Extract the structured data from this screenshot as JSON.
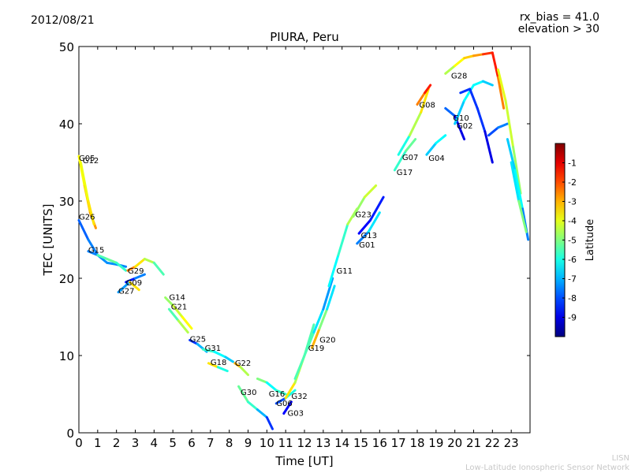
{
  "header": {
    "date": "2012/08/21",
    "bias_line": "rx_bias = 41.0",
    "elevation_line": "elevation > 30"
  },
  "footer": {
    "credit_short": "LISN",
    "credit_long": "Low-Latitude Ionospheric Sensor Network"
  },
  "chart_data": {
    "type": "scatter",
    "title": "PIURA, Peru",
    "xlabel": "Time [UT]",
    "ylabel": "TEC [UNITS]",
    "xlim": [
      0,
      24
    ],
    "ylim": [
      0,
      50
    ],
    "xticks": [
      0,
      1,
      2,
      3,
      4,
      5,
      6,
      7,
      8,
      9,
      10,
      11,
      12,
      13,
      14,
      15,
      16,
      17,
      18,
      19,
      20,
      21,
      22,
      23
    ],
    "yticks": [
      0,
      10,
      20,
      30,
      40,
      50
    ],
    "grid": false,
    "colorbar": {
      "label": "Latitude",
      "range": [
        -10,
        0
      ],
      "ticks": [
        -1,
        -2,
        -3,
        -4,
        -5,
        -6,
        -7,
        -8,
        -9
      ]
    },
    "series": [
      {
        "name": "G05",
        "label_at": [
          0.0,
          35.6
        ],
        "points": [
          [
            0.0,
            35.8,
            -4
          ],
          [
            0.3,
            32.0,
            -3.5
          ],
          [
            0.6,
            28.5,
            -3
          ],
          [
            0.9,
            26.5,
            -2.5
          ]
        ]
      },
      {
        "name": "G12",
        "label_at": [
          0.2,
          35.3
        ],
        "points": [
          [
            0.1,
            35.0,
            -4
          ],
          [
            0.5,
            30.0,
            -3.8
          ],
          [
            0.8,
            27.0,
            -3.2
          ]
        ]
      },
      {
        "name": "G26",
        "label_at": [
          0.0,
          28.0
        ],
        "points": [
          [
            0.0,
            27.5,
            -8
          ],
          [
            0.5,
            25.0,
            -7.6
          ],
          [
            1.0,
            23.0,
            -7.4
          ],
          [
            1.5,
            22.0,
            -7.3
          ],
          [
            2.0,
            21.8,
            -7.4
          ],
          [
            2.5,
            21.5,
            -7.5
          ]
        ]
      },
      {
        "name": "G15",
        "label_at": [
          0.5,
          23.7
        ],
        "points": [
          [
            0.5,
            23.5,
            -9
          ],
          [
            1.0,
            23.0,
            -6
          ],
          [
            1.5,
            22.5,
            -5
          ],
          [
            2.0,
            22.0,
            -5.5
          ],
          [
            2.5,
            21.0,
            -6
          ]
        ]
      },
      {
        "name": "G29",
        "label_at": [
          2.6,
          21.0
        ],
        "points": [
          [
            2.6,
            21.0,
            -2
          ],
          [
            3.0,
            21.5,
            -3
          ],
          [
            3.5,
            22.5,
            -4
          ],
          [
            4.0,
            22.0,
            -5
          ],
          [
            4.5,
            20.5,
            -6
          ]
        ]
      },
      {
        "name": "G09",
        "label_at": [
          2.5,
          19.5
        ],
        "points": [
          [
            2.5,
            19.5,
            -9
          ],
          [
            3.0,
            20.0,
            -8
          ],
          [
            3.5,
            20.5,
            -7
          ]
        ]
      },
      {
        "name": "G27",
        "label_at": [
          2.1,
          18.4
        ],
        "points": [
          [
            2.1,
            18.2,
            -9.5
          ],
          [
            2.7,
            19.5,
            -5
          ],
          [
            3.2,
            18.5,
            -2
          ]
        ]
      },
      {
        "name": "G14",
        "label_at": [
          4.8,
          17.6
        ],
        "points": [
          [
            4.6,
            17.5,
            -5
          ],
          [
            5.0,
            16.5,
            -4.5
          ],
          [
            5.5,
            15.0,
            -4
          ],
          [
            6.0,
            13.5,
            -3.5
          ]
        ]
      },
      {
        "name": "G21",
        "label_at": [
          4.9,
          16.4
        ],
        "points": [
          [
            4.8,
            16.0,
            -6
          ],
          [
            5.3,
            14.5,
            -5
          ],
          [
            5.8,
            13.0,
            -4
          ]
        ]
      },
      {
        "name": "G25",
        "label_at": [
          5.9,
          12.2
        ],
        "points": [
          [
            5.9,
            12.0,
            -9
          ],
          [
            6.3,
            11.5,
            -7.5
          ],
          [
            6.8,
            10.5,
            -6.5
          ]
        ]
      },
      {
        "name": "G31",
        "label_at": [
          6.7,
          11.0
        ],
        "points": [
          [
            6.6,
            10.8,
            -5.5
          ],
          [
            7.2,
            10.5,
            -6
          ],
          [
            7.8,
            9.8,
            -6.5
          ],
          [
            8.2,
            9.2,
            -7
          ]
        ]
      },
      {
        "name": "G18",
        "label_at": [
          7.0,
          9.2
        ],
        "points": [
          [
            6.9,
            9.0,
            -2
          ],
          [
            7.4,
            8.5,
            -5
          ],
          [
            7.9,
            8.0,
            -7
          ]
        ]
      },
      {
        "name": "G22",
        "label_at": [
          8.3,
          9.1
        ],
        "points": [
          [
            8.3,
            9.0,
            -2
          ],
          [
            8.6,
            8.5,
            -4
          ],
          [
            9.0,
            7.5,
            -5
          ]
        ]
      },
      {
        "name": "G30",
        "label_at": [
          8.6,
          5.3
        ],
        "points": [
          [
            8.5,
            6.0,
            -5
          ],
          [
            9.0,
            4.0,
            -5.5
          ],
          [
            9.5,
            3.0,
            -6
          ],
          [
            10.0,
            2.0,
            -8
          ],
          [
            10.3,
            0.5,
            -8.5
          ]
        ]
      },
      {
        "name": "G16",
        "label_at": [
          10.1,
          5.1
        ],
        "points": [
          [
            9.5,
            7.0,
            -4
          ],
          [
            10.0,
            6.5,
            -6
          ],
          [
            10.5,
            5.5,
            -6.5
          ],
          [
            11.0,
            5.0,
            -5
          ]
        ]
      },
      {
        "name": "G06",
        "label_at": [
          10.5,
          3.9
        ],
        "points": [
          [
            10.5,
            3.8,
            -9
          ],
          [
            11.0,
            4.5,
            -7
          ],
          [
            11.5,
            5.5,
            -5
          ]
        ]
      },
      {
        "name": "G32",
        "label_at": [
          11.3,
          4.8
        ],
        "points": [
          [
            11.0,
            4.5,
            -3
          ],
          [
            11.5,
            6.5,
            -4
          ],
          [
            12.0,
            10.0,
            -5
          ],
          [
            12.5,
            14.0,
            -6
          ]
        ]
      },
      {
        "name": "G03",
        "label_at": [
          11.1,
          2.6
        ],
        "points": [
          [
            10.9,
            2.5,
            -9.5
          ],
          [
            11.3,
            4.0,
            -8
          ]
        ]
      },
      {
        "name": "G19",
        "label_at": [
          12.2,
          11.0
        ],
        "points": [
          [
            11.5,
            7.0,
            -6
          ],
          [
            12.0,
            10.0,
            -5
          ],
          [
            12.5,
            13.0,
            -6
          ],
          [
            13.0,
            16.0,
            -7
          ],
          [
            13.5,
            20.0,
            -7.5
          ]
        ]
      },
      {
        "name": "G20",
        "label_at": [
          12.8,
          12.1
        ],
        "points": [
          [
            12.4,
            11.0,
            -2
          ],
          [
            12.8,
            13.5,
            -4
          ],
          [
            13.2,
            16.0,
            -6
          ],
          [
            13.6,
            19.0,
            -7
          ]
        ]
      },
      {
        "name": "G11",
        "label_at": [
          13.7,
          21.0
        ],
        "points": [
          [
            13.3,
            19.0,
            -6
          ],
          [
            13.8,
            23.0,
            -6.5
          ],
          [
            14.3,
            27.0,
            -5
          ],
          [
            14.8,
            29.0,
            -4
          ]
        ]
      },
      {
        "name": "G23",
        "label_at": [
          14.7,
          28.3
        ],
        "points": [
          [
            14.6,
            28.0,
            -5
          ],
          [
            15.2,
            30.5,
            -4.5
          ],
          [
            15.8,
            32.0,
            -4
          ]
        ]
      },
      {
        "name": "G13",
        "label_at": [
          15.0,
          25.6
        ],
        "points": [
          [
            14.9,
            25.8,
            -9
          ],
          [
            15.5,
            27.5,
            -8.5
          ],
          [
            16.2,
            30.5,
            -8.5
          ]
        ]
      },
      {
        "name": "G01",
        "label_at": [
          14.9,
          24.4
        ],
        "points": [
          [
            14.8,
            24.5,
            -8
          ],
          [
            15.4,
            26.0,
            -7
          ],
          [
            16.0,
            28.5,
            -6
          ]
        ]
      },
      {
        "name": "G17",
        "label_at": [
          16.9,
          33.8
        ],
        "points": [
          [
            16.8,
            34.0,
            -6
          ],
          [
            17.4,
            36.5,
            -5.5
          ],
          [
            17.9,
            38.0,
            -5
          ]
        ]
      },
      {
        "name": "G07",
        "label_at": [
          17.2,
          35.7
        ],
        "points": [
          [
            17.0,
            36.0,
            -7
          ],
          [
            17.6,
            38.5,
            -5
          ],
          [
            18.2,
            41.5,
            -4
          ],
          [
            18.6,
            44.5,
            -3
          ]
        ]
      },
      {
        "name": "G08",
        "label_at": [
          18.1,
          42.5
        ],
        "points": [
          [
            18.0,
            42.5,
            -3
          ],
          [
            18.4,
            44.0,
            -2
          ],
          [
            18.7,
            45.0,
            -1
          ]
        ]
      },
      {
        "name": "G04",
        "label_at": [
          18.6,
          35.6
        ],
        "points": [
          [
            18.5,
            36.0,
            -7
          ],
          [
            19.0,
            37.5,
            -6.5
          ],
          [
            19.5,
            38.5,
            -6
          ]
        ]
      },
      {
        "name": "G28",
        "label_at": [
          19.8,
          46.3
        ],
        "points": [
          [
            19.5,
            46.5,
            -5
          ],
          [
            20.0,
            47.5,
            -4
          ],
          [
            20.5,
            48.5,
            -3.5
          ],
          [
            21.0,
            48.8,
            -3
          ],
          [
            21.5,
            49.0,
            -2.5
          ],
          [
            22.0,
            49.2,
            -1
          ],
          [
            22.3,
            46.0,
            -2
          ],
          [
            22.6,
            42.0,
            -3
          ]
        ]
      },
      {
        "name": "G10",
        "label_at": [
          19.9,
          40.8
        ],
        "points": [
          [
            19.5,
            42.0,
            -7
          ],
          [
            20.0,
            41.0,
            -8.5
          ],
          [
            20.5,
            38.0,
            -9.5
          ]
        ]
      },
      {
        "name": "G02",
        "label_at": [
          20.1,
          39.8
        ],
        "points": [
          [
            20.0,
            40.0,
            -7
          ],
          [
            20.5,
            43.0,
            -6.5
          ],
          [
            21.0,
            45.0,
            -6
          ],
          [
            21.5,
            45.5,
            -6.5
          ],
          [
            22.0,
            45.0,
            -7
          ]
        ]
      },
      {
        "name": "",
        "label_at": null,
        "points": [
          [
            20.3,
            44.0,
            -8
          ],
          [
            20.8,
            44.5,
            -8.5
          ],
          [
            21.2,
            42.0,
            -8
          ],
          [
            21.6,
            39.0,
            -8.5
          ],
          [
            22.0,
            35.0,
            -9.5
          ]
        ]
      },
      {
        "name": "",
        "label_at": null,
        "points": [
          [
            21.8,
            38.5,
            -8
          ],
          [
            22.3,
            39.5,
            -8
          ],
          [
            22.8,
            40.0,
            -7
          ]
        ]
      },
      {
        "name": "",
        "label_at": null,
        "points": [
          [
            22.3,
            47.0,
            -4
          ],
          [
            22.7,
            43.0,
            -4
          ],
          [
            23.1,
            37.0,
            -4.5
          ],
          [
            23.5,
            31.0,
            -5
          ]
        ]
      },
      {
        "name": "",
        "label_at": null,
        "points": [
          [
            22.8,
            38.0,
            -7
          ],
          [
            23.2,
            34.0,
            -6.5
          ],
          [
            23.6,
            29.0,
            -6
          ],
          [
            23.9,
            25.0,
            -9
          ]
        ]
      },
      {
        "name": "",
        "label_at": null,
        "points": [
          [
            23.0,
            35.0,
            -5
          ],
          [
            23.4,
            30.0,
            -8
          ],
          [
            23.8,
            26.0,
            -2
          ]
        ]
      }
    ]
  }
}
